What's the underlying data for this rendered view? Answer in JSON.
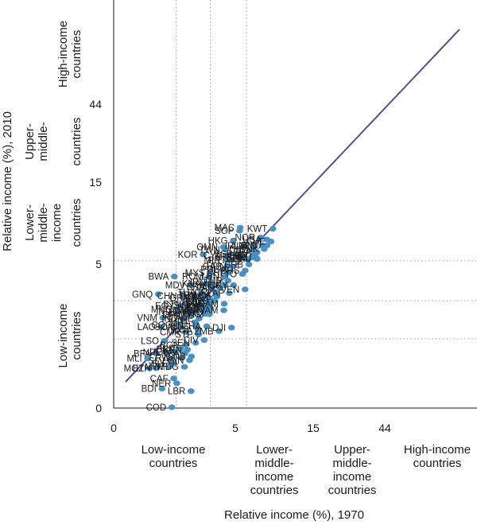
{
  "chart_data": {
    "type": "scatter",
    "xlabel": "Relative income (%), 1970",
    "ylabel": "Relative income (%), 2010",
    "ticks": [
      "0",
      "5",
      "15",
      "44"
    ],
    "band_labels": {
      "x": [
        [
          "Low-income",
          "countries"
        ],
        [
          "Lower-",
          "middle-",
          "income",
          "countries"
        ],
        [
          "Upper-",
          "middle-",
          "income",
          "countries"
        ],
        [
          "High-income",
          "countries"
        ]
      ],
      "y": [
        [
          "Low-income",
          "countries"
        ],
        [
          "Lower-",
          "middle-",
          "income",
          "countries"
        ],
        [
          "Upper-",
          "middle-",
          "countries"
        ],
        [
          "High-income",
          "countries"
        ]
      ]
    },
    "grid": true,
    "trend_line": true,
    "colors": {
      "point": "#4a90c2",
      "line": "#5a4f8c",
      "grid": "#9a9a9a"
    },
    "points": [
      {
        "label": "MAC",
        "x": 36.7,
        "y": 105
      },
      {
        "label": "SGP",
        "x": 36,
        "y": 97
      },
      {
        "label": "KWT",
        "x": 95.1,
        "y": 102
      },
      {
        "label": "NOR",
        "x": 67.1,
        "y": 81
      },
      {
        "label": "USA",
        "x": 80,
        "y": 77
      },
      {
        "label": "CHE",
        "x": 90,
        "y": 73
      },
      {
        "label": "HKG",
        "x": 30,
        "y": 75
      },
      {
        "label": "IRL",
        "x": 41.7,
        "y": 65
      },
      {
        "label": "AUT",
        "x": 55,
        "y": 65
      },
      {
        "label": "NLD",
        "x": 70,
        "y": 66
      },
      {
        "label": "BMU",
        "x": 80,
        "y": 66
      },
      {
        "label": "OMN",
        "x": 22.3,
        "y": 63
      },
      {
        "label": "TWN",
        "x": 23.6,
        "y": 59
      },
      {
        "label": "DEU",
        "x": 54.5,
        "y": 58
      },
      {
        "label": "DNK",
        "x": 74,
        "y": 60
      },
      {
        "label": "FRA",
        "x": 60,
        "y": 55
      },
      {
        "label": "ESP",
        "x": 34.5,
        "y": 53
      },
      {
        "label": "GBR",
        "x": 53.3,
        "y": 51
      },
      {
        "label": "CYP",
        "x": 25.3,
        "y": 51
      },
      {
        "label": "KOR",
        "x": 12,
        "y": 52
      },
      {
        "label": "GRC",
        "x": 37.6,
        "y": 48
      },
      {
        "label": "BHR",
        "x": 51,
        "y": 48
      },
      {
        "label": "NZL",
        "x": 58.5,
        "y": 48
      },
      {
        "label": "ISR",
        "x": 45,
        "y": 46
      },
      {
        "label": "SAU",
        "x": 60,
        "y": 46
      },
      {
        "label": "MLT",
        "x": 24.8,
        "y": 45
      },
      {
        "label": "PRT",
        "x": 28.5,
        "y": 45
      },
      {
        "label": "BRB",
        "x": 47.3,
        "y": 40
      },
      {
        "label": "GAB",
        "x": 25,
        "y": 38
      },
      {
        "label": "HUN",
        "x": 28.5,
        "y": 38
      },
      {
        "label": "BHS",
        "x": 42.4,
        "y": 34
      },
      {
        "label": "POL",
        "x": 23,
        "y": 35
      },
      {
        "label": "TTO",
        "x": 39.3,
        "y": 31
      },
      {
        "label": "MYS",
        "x": 15,
        "y": 32
      },
      {
        "label": "CHI",
        "x": 25.5,
        "y": 32
      },
      {
        "label": "BWA",
        "x": 4.7,
        "y": 29
      },
      {
        "label": "ROM",
        "x": 14.4,
        "y": 29
      },
      {
        "label": "LBN",
        "x": 23.3,
        "y": 29
      },
      {
        "label": "IRN",
        "x": 15.4,
        "y": 25
      },
      {
        "label": "TUR",
        "x": 25.5,
        "y": 26
      },
      {
        "label": "KNA",
        "x": 13.2,
        "y": 24
      },
      {
        "label": "URY",
        "x": 30.1,
        "y": 23
      },
      {
        "label": "MDV",
        "x": 8.2,
        "y": 23
      },
      {
        "label": "MEX",
        "x": 23.3,
        "y": 23
      },
      {
        "label": "BRA",
        "x": 15.2,
        "y": 22
      },
      {
        "label": "PAN",
        "x": 20,
        "y": 21.5
      },
      {
        "label": "VEN",
        "x": 42.3,
        "y": 20.5
      },
      {
        "label": "THA",
        "x": 11.3,
        "y": 19
      },
      {
        "label": "CRI",
        "x": 17.6,
        "y": 19
      },
      {
        "label": "ZAF",
        "x": 26.6,
        "y": 18.5
      },
      {
        "label": "GNQ",
        "x": 2.6,
        "y": 18
      },
      {
        "label": "TUN",
        "x": 11.8,
        "y": 17.5
      },
      {
        "label": "LCA",
        "x": 18,
        "y": 17.5
      },
      {
        "label": "CHN",
        "x": 6.2,
        "y": 17.2
      },
      {
        "label": "DOM",
        "x": 13.5,
        "y": 17
      },
      {
        "label": "COL",
        "x": 18.3,
        "y": 16.8
      },
      {
        "label": "GRD",
        "x": 9.4,
        "y": 16.2
      },
      {
        "label": "PER",
        "x": 14.6,
        "y": 16
      },
      {
        "label": "ALB",
        "x": 16.8,
        "y": 15
      },
      {
        "label": "ECU",
        "x": 13.4,
        "y": 14.4
      },
      {
        "label": "BLZ",
        "x": 14.2,
        "y": 14.5
      },
      {
        "label": "SUR",
        "x": 14.9,
        "y": 14
      },
      {
        "label": "NAM",
        "x": 22.8,
        "y": 13.8
      },
      {
        "label": "BTN",
        "x": 7.2,
        "y": 13.6
      },
      {
        "label": "SWZ",
        "x": 10.6,
        "y": 13.3
      },
      {
        "label": "EGY",
        "x": 5.7,
        "y": 13
      },
      {
        "label": "LKA",
        "x": 12.4,
        "y": 12.9
      },
      {
        "label": "JOR",
        "x": 14.2,
        "y": 12.7
      },
      {
        "label": "AGO",
        "x": 15.1,
        "y": 12.1
      },
      {
        "label": "JAM",
        "x": 22.5,
        "y": 11.5
      },
      {
        "label": "MNG",
        "x": 5.3,
        "y": 11.8
      },
      {
        "label": "MAR",
        "x": 10.3,
        "y": 11.6
      },
      {
        "label": "SYR",
        "x": 12.9,
        "y": 11.5
      },
      {
        "label": "IND",
        "x": 5.2,
        "y": 11
      },
      {
        "label": "PRY",
        "x": 8.6,
        "y": 11
      },
      {
        "label": "IRQ",
        "x": 14.3,
        "y": 10.9
      },
      {
        "label": "PHL",
        "x": 12.8,
        "y": 10.4
      },
      {
        "label": "GTM",
        "x": 14.6,
        "y": 10.3
      },
      {
        "label": "CPV",
        "x": 7.1,
        "y": 10.2
      },
      {
        "label": "BOL",
        "x": 8.2,
        "y": 9.8
      },
      {
        "label": "VNM",
        "x": 3.1,
        "y": 9.3
      },
      {
        "label": "ZWE",
        "x": 10.6,
        "y": 9.1
      },
      {
        "label": "IND",
        "x": 6.3,
        "y": 9.1
      },
      {
        "label": "MRT",
        "x": 9.3,
        "y": 8.2
      },
      {
        "label": "COG",
        "x": 5.3,
        "y": 7.6
      },
      {
        "label": "SOM",
        "x": 5.9,
        "y": 7.1
      },
      {
        "label": "HND",
        "x": 9.6,
        "y": 7.3
      },
      {
        "label": "GHA",
        "x": 13.4,
        "y": 7.3
      },
      {
        "label": "LAO",
        "x": 2.9,
        "y": 7.1
      },
      {
        "label": "DJI",
        "x": 28.3,
        "y": 7
      },
      {
        "label": "NGA",
        "x": 10.2,
        "y": 6.5
      },
      {
        "label": "ZMB",
        "x": 19.5,
        "y": 6.3
      },
      {
        "label": "CMR",
        "x": 7,
        "y": 6.1
      },
      {
        "label": "STP",
        "x": 10.4,
        "y": 5.7
      },
      {
        "label": "LSO",
        "x": 3.3,
        "y": 4.7
      },
      {
        "label": "CIV",
        "x": 12.4,
        "y": 4.8
      },
      {
        "label": "SEN",
        "x": 9.5,
        "y": 4.4
      },
      {
        "label": "BGR",
        "x": 6.8,
        "y": 4.1
      },
      {
        "label": "BEN",
        "x": 5.8,
        "y": 3.6
      },
      {
        "label": "KEN",
        "x": 7.3,
        "y": 3.5
      },
      {
        "label": "BFA",
        "x": 2.4,
        "y": 3.1
      },
      {
        "label": "NPL",
        "x": 3.5,
        "y": 3.2
      },
      {
        "label": "UGA",
        "x": 4.8,
        "y": 3.3
      },
      {
        "label": "TZA",
        "x": 6.7,
        "y": 3.1
      },
      {
        "label": "GNB",
        "x": 8.3,
        "y": 2.8
      },
      {
        "label": "MLI",
        "x": 1.65,
        "y": 2.6
      },
      {
        "label": "RWA",
        "x": 6,
        "y": 2.65
      },
      {
        "label": "SLV",
        "x": 4.1,
        "y": 2.4
      },
      {
        "label": "GIN",
        "x": 7.8,
        "y": 2.45
      },
      {
        "label": "SLE",
        "x": 4.6,
        "y": 2.15
      },
      {
        "label": "MOZ",
        "x": 1.8,
        "y": 1.8
      },
      {
        "label": "ETH",
        "x": 2.4,
        "y": 1.8
      },
      {
        "label": "MDG",
        "x": 6.6,
        "y": 1.9
      },
      {
        "label": "MWI",
        "x": 3.9,
        "y": 1.9
      },
      {
        "label": "CAF",
        "x": 4.6,
        "y": 1.15
      },
      {
        "label": "NER",
        "x": 5.1,
        "y": 0.9
      },
      {
        "label": "BDI",
        "x": 3,
        "y": 0.65
      },
      {
        "label": "LBR",
        "x": 8.2,
        "y": 0.55
      },
      {
        "label": "COD",
        "x": 4.3,
        "y": 0.02
      }
    ]
  }
}
